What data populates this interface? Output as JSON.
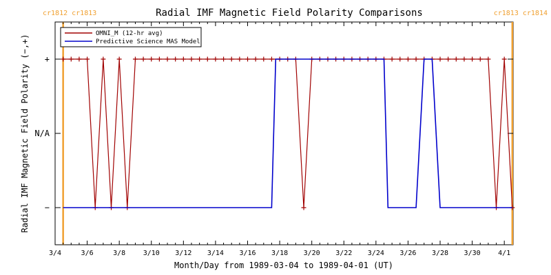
{
  "chart_data": {
    "type": "line",
    "title": "Radial IMF Magnetic Field Polarity Comparisons",
    "xlabel": "Month/Day from 1989-03-04 to 1989-04-01 (UT)",
    "ylabel": "Radial IMF Magnetic Field Polarity (−,+)",
    "x_start": "1989-03-04",
    "x_end": "1989-04-01",
    "xlim": [
      "1989-03-04",
      "1989-04-01"
    ],
    "ylim": [
      -1.5,
      1.5
    ],
    "x_ticks": [
      {
        "date": "1989-03-04",
        "label": "3/4"
      },
      {
        "date": "1989-03-06",
        "label": "3/6"
      },
      {
        "date": "1989-03-08",
        "label": "3/8"
      },
      {
        "date": "1989-03-10",
        "label": "3/10"
      },
      {
        "date": "1989-03-12",
        "label": "3/12"
      },
      {
        "date": "1989-03-14",
        "label": "3/14"
      },
      {
        "date": "1989-03-16",
        "label": "3/16"
      },
      {
        "date": "1989-03-18",
        "label": "3/18"
      },
      {
        "date": "1989-03-20",
        "label": "3/20"
      },
      {
        "date": "1989-03-22",
        "label": "3/22"
      },
      {
        "date": "1989-03-24",
        "label": "3/24"
      },
      {
        "date": "1989-03-26",
        "label": "3/26"
      },
      {
        "date": "1989-03-28",
        "label": "3/28"
      },
      {
        "date": "1989-03-30",
        "label": "3/30"
      },
      {
        "date": "1989-04-01",
        "label": "4/1"
      }
    ],
    "y_ticks": [
      {
        "value": 1,
        "label": "+"
      },
      {
        "value": 0,
        "label": "N/A"
      },
      {
        "value": -1,
        "label": "−"
      }
    ],
    "carrington_markers": [
      {
        "date": "1989-03-04 12:00",
        "label": "cr1812 cr1813",
        "color": "#f0a030"
      },
      {
        "date": "1989-04-01 12:00",
        "label": "cr1813 cr1814",
        "color": "#f0a030"
      }
    ],
    "legend": {
      "placement": "top-left"
    },
    "series": [
      {
        "name": "OMNI_M (12-hr avg)",
        "color": "#a00000",
        "markers": "plus",
        "x": [
          "1989-03-04 12:00",
          "1989-03-05 00:00",
          "1989-03-05 12:00",
          "1989-03-06 00:00",
          "1989-03-06 12:00",
          "1989-03-07 00:00",
          "1989-03-07 12:00",
          "1989-03-08 00:00",
          "1989-03-08 12:00",
          "1989-03-09 00:00",
          "1989-03-09 12:00",
          "1989-03-10 00:00",
          "1989-03-10 12:00",
          "1989-03-11 00:00",
          "1989-03-11 12:00",
          "1989-03-12 00:00",
          "1989-03-12 12:00",
          "1989-03-13 00:00",
          "1989-03-13 12:00",
          "1989-03-14 00:00",
          "1989-03-14 12:00",
          "1989-03-15 00:00",
          "1989-03-15 12:00",
          "1989-03-16 00:00",
          "1989-03-16 12:00",
          "1989-03-17 00:00",
          "1989-03-17 12:00",
          "1989-03-18 00:00",
          "1989-03-18 12:00",
          "1989-03-19 00:00",
          "1989-03-19 12:00",
          "1989-03-20 00:00",
          "1989-03-20 12:00",
          "1989-03-21 00:00",
          "1989-03-21 12:00",
          "1989-03-22 00:00",
          "1989-03-22 12:00",
          "1989-03-23 00:00",
          "1989-03-23 12:00",
          "1989-03-24 00:00",
          "1989-03-24 12:00",
          "1989-03-25 00:00",
          "1989-03-25 12:00",
          "1989-03-26 00:00",
          "1989-03-26 12:00",
          "1989-03-27 00:00",
          "1989-03-27 12:00",
          "1989-03-28 00:00",
          "1989-03-28 12:00",
          "1989-03-29 00:00",
          "1989-03-29 12:00",
          "1989-03-30 00:00",
          "1989-03-30 12:00",
          "1989-03-31 00:00",
          "1989-03-31 12:00",
          "1989-04-01 00:00",
          "1989-04-01 12:00"
        ],
        "y": [
          1,
          1,
          1,
          1,
          -1,
          1,
          -1,
          1,
          -1,
          1,
          1,
          1,
          1,
          1,
          1,
          1,
          1,
          1,
          1,
          1,
          1,
          1,
          1,
          1,
          1,
          1,
          1,
          1,
          1,
          1,
          -1,
          1,
          1,
          1,
          1,
          1,
          1,
          1,
          1,
          1,
          1,
          1,
          1,
          1,
          1,
          1,
          1,
          1,
          1,
          1,
          1,
          1,
          1,
          1,
          -1,
          1,
          -1
        ]
      },
      {
        "name": "Predictive Science MAS Model",
        "color": "#0000cc",
        "markers": "none",
        "x": [
          "1989-03-04 12:00",
          "1989-03-17 12:00",
          "1989-03-17 18:00",
          "1989-03-24 12:00",
          "1989-03-24 18:00",
          "1989-03-26 12:00",
          "1989-03-27 00:00",
          "1989-03-27 12:00",
          "1989-03-28 00:00",
          "1989-04-01 12:00"
        ],
        "y": [
          -1,
          -1,
          1,
          1,
          -1,
          -1,
          1,
          1,
          -1,
          -1
        ]
      }
    ]
  }
}
